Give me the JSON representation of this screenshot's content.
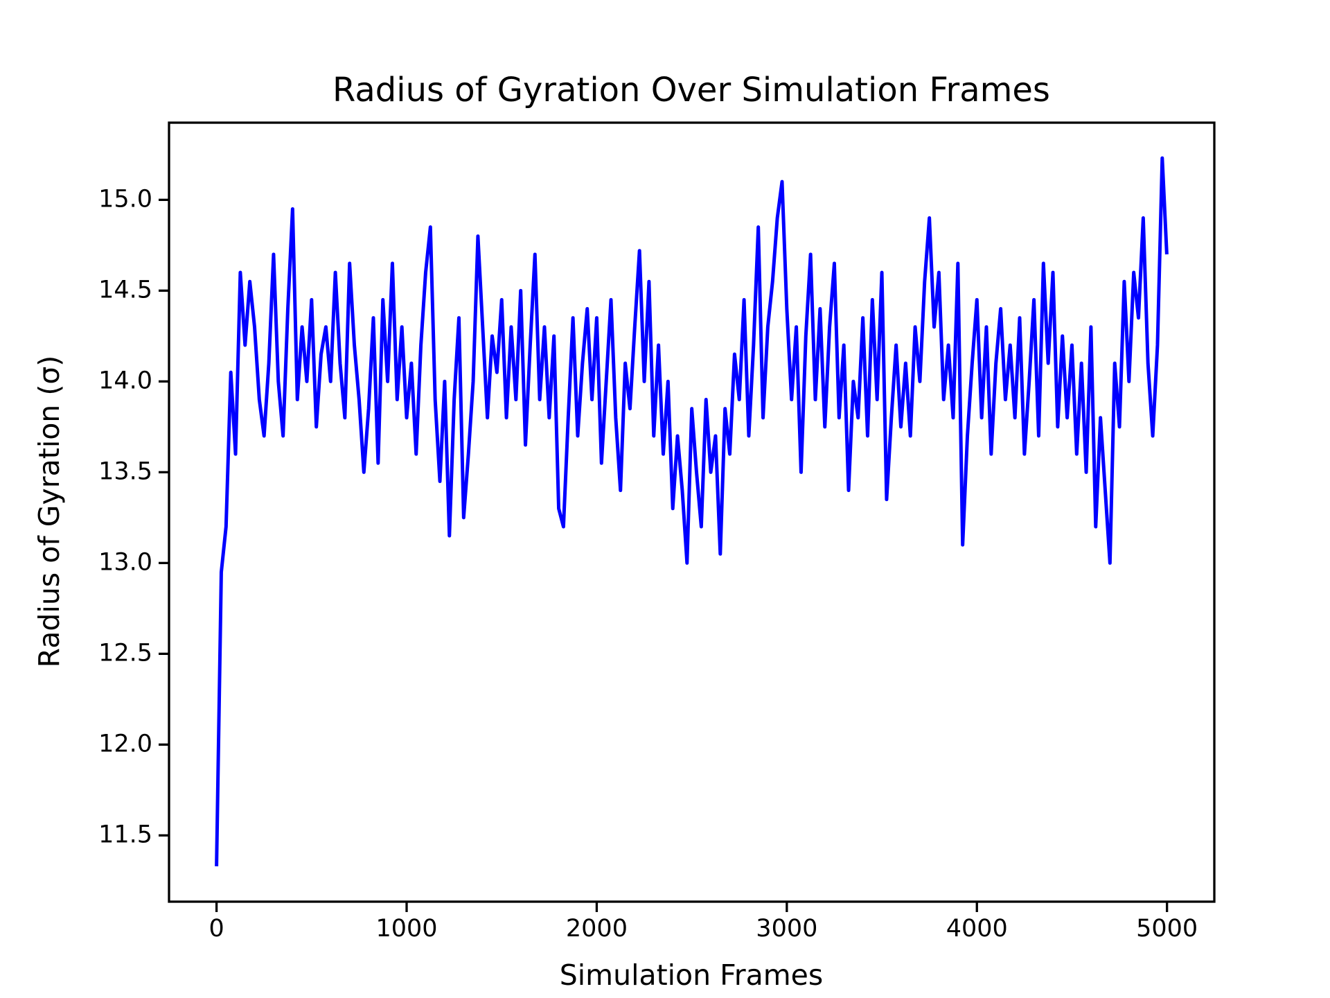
{
  "chart_data": {
    "type": "line",
    "title": "Radius of Gyration Over Simulation Frames",
    "x_label": "Simulation Frames",
    "y_label": "Radius of Gyration (σ)",
    "color": "#0000ff",
    "x": [
      0,
      25,
      50,
      75,
      100,
      125,
      150,
      175,
      200,
      225,
      250,
      275,
      300,
      325,
      350,
      375,
      400,
      425,
      450,
      475,
      500,
      525,
      550,
      575,
      600,
      625,
      650,
      675,
      700,
      725,
      750,
      775,
      800,
      825,
      850,
      875,
      900,
      925,
      950,
      975,
      1000,
      1025,
      1050,
      1075,
      1100,
      1125,
      1150,
      1175,
      1200,
      1225,
      1250,
      1275,
      1300,
      1325,
      1350,
      1375,
      1400,
      1425,
      1450,
      1475,
      1500,
      1525,
      1550,
      1575,
      1600,
      1625,
      1650,
      1675,
      1700,
      1725,
      1750,
      1775,
      1800,
      1825,
      1850,
      1875,
      1900,
      1925,
      1950,
      1975,
      2000,
      2025,
      2050,
      2075,
      2100,
      2125,
      2150,
      2175,
      2200,
      2225,
      2250,
      2275,
      2300,
      2325,
      2350,
      2375,
      2400,
      2425,
      2450,
      2475,
      2500,
      2525,
      2550,
      2575,
      2600,
      2625,
      2650,
      2675,
      2700,
      2725,
      2750,
      2775,
      2800,
      2825,
      2850,
      2875,
      2900,
      2925,
      2950,
      2975,
      3000,
      3025,
      3050,
      3075,
      3100,
      3125,
      3150,
      3175,
      3200,
      3225,
      3250,
      3275,
      3300,
      3325,
      3350,
      3375,
      3400,
      3425,
      3450,
      3475,
      3500,
      3525,
      3550,
      3575,
      3600,
      3625,
      3650,
      3675,
      3700,
      3725,
      3750,
      3775,
      3800,
      3825,
      3850,
      3875,
      3900,
      3925,
      3950,
      3975,
      4000,
      4025,
      4050,
      4075,
      4100,
      4125,
      4150,
      4175,
      4200,
      4225,
      4250,
      4275,
      4300,
      4325,
      4350,
      4375,
      4400,
      4425,
      4450,
      4475,
      4500,
      4525,
      4550,
      4575,
      4600,
      4625,
      4650,
      4675,
      4700,
      4725,
      4750,
      4775,
      4800,
      4825,
      4850,
      4875,
      4900,
      4925,
      4950,
      4975,
      4999
    ],
    "values": [
      11.33,
      12.95,
      13.2,
      14.05,
      13.6,
      14.6,
      14.2,
      14.55,
      14.3,
      13.9,
      13.7,
      14.1,
      14.7,
      14.0,
      13.7,
      14.4,
      14.95,
      13.9,
      14.3,
      14.0,
      14.45,
      13.75,
      14.15,
      14.3,
      14.0,
      14.6,
      14.1,
      13.8,
      14.65,
      14.2,
      13.9,
      13.5,
      13.85,
      14.35,
      13.55,
      14.45,
      14.0,
      14.65,
      13.9,
      14.3,
      13.8,
      14.1,
      13.6,
      14.2,
      14.6,
      14.85,
      13.9,
      13.45,
      14.0,
      13.15,
      13.9,
      14.35,
      13.25,
      13.6,
      14.0,
      14.8,
      14.3,
      13.8,
      14.25,
      14.05,
      14.45,
      13.8,
      14.3,
      13.9,
      14.5,
      13.65,
      14.2,
      14.7,
      13.9,
      14.3,
      13.8,
      14.25,
      13.3,
      13.2,
      13.8,
      14.35,
      13.7,
      14.1,
      14.4,
      13.9,
      14.35,
      13.55,
      14.0,
      14.45,
      13.8,
      13.4,
      14.1,
      13.85,
      14.3,
      14.72,
      14.0,
      14.55,
      13.7,
      14.2,
      13.6,
      14.0,
      13.3,
      13.7,
      13.4,
      13.0,
      13.85,
      13.5,
      13.2,
      13.9,
      13.5,
      13.7,
      13.05,
      13.85,
      13.6,
      14.15,
      13.9,
      14.45,
      13.7,
      14.2,
      14.85,
      13.8,
      14.3,
      14.55,
      14.9,
      15.1,
      14.4,
      13.9,
      14.3,
      13.5,
      14.25,
      14.7,
      13.9,
      14.4,
      13.75,
      14.3,
      14.65,
      13.8,
      14.2,
      13.4,
      14.0,
      13.8,
      14.35,
      13.7,
      14.45,
      13.9,
      14.6,
      13.35,
      13.8,
      14.2,
      13.75,
      14.1,
      13.7,
      14.3,
      14.0,
      14.55,
      14.9,
      14.3,
      14.6,
      13.9,
      14.2,
      13.8,
      14.65,
      13.1,
      13.7,
      14.1,
      14.45,
      13.8,
      14.3,
      13.6,
      14.1,
      14.4,
      13.9,
      14.2,
      13.8,
      14.35,
      13.6,
      14.0,
      14.45,
      13.7,
      14.65,
      14.1,
      14.6,
      13.75,
      14.25,
      13.8,
      14.2,
      13.6,
      14.1,
      13.5,
      14.3,
      13.2,
      13.8,
      13.4,
      13.0,
      14.1,
      13.75,
      14.55,
      14.0,
      14.6,
      14.35,
      14.9,
      14.1,
      13.7,
      14.2,
      15.23,
      14.7
    ],
    "xlim": [
      -250,
      5249
    ],
    "ylim": [
      11.135,
      15.425
    ],
    "xticks": [
      0,
      1000,
      2000,
      3000,
      4000,
      5000
    ],
    "yticks": [
      11.5,
      {
        "value": 12,
        "label": "12.0"
      },
      12.5,
      {
        "value": 13,
        "label": "13.0"
      },
      13.5,
      {
        "value": 14,
        "label": "14.0"
      },
      14.5,
      {
        "value": 15,
        "label": "15.0"
      }
    ]
  }
}
